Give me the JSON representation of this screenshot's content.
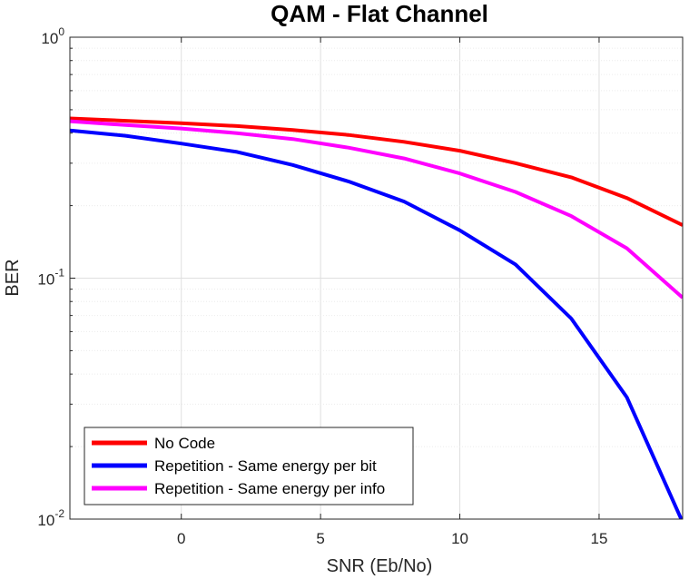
{
  "chart_data": {
    "type": "line",
    "title": "QAM - Flat Channel",
    "xlabel": "SNR (Eb/No)",
    "ylabel": "BER",
    "xlim": [
      -4,
      18
    ],
    "ylim": [
      0.01,
      1
    ],
    "yscale": "log",
    "grid": true,
    "legend_position": "bottom-left",
    "xticks": [
      0,
      5,
      10,
      15
    ],
    "xtick_labels": [
      "0",
      "5",
      "10",
      "15"
    ],
    "yticks": [
      {
        "value": 1,
        "base": "10",
        "exp": "0"
      },
      {
        "value": 0.1,
        "base": "10",
        "exp": "-1"
      },
      {
        "value": 0.01,
        "base": "10",
        "exp": "-2"
      }
    ],
    "x": [
      -4,
      -2,
      0,
      2,
      4,
      6,
      8,
      10,
      12,
      14,
      16,
      18
    ],
    "series": [
      {
        "name": "No Code",
        "color": "#ff0000",
        "values": [
          0.46,
          0.45,
          0.44,
          0.428,
          0.412,
          0.393,
          0.368,
          0.338,
          0.3,
          0.262,
          0.215,
          0.166
        ]
      },
      {
        "name": "Repetition - Same energy per bit",
        "color": "#0000ff",
        "values": [
          0.41,
          0.39,
          0.362,
          0.334,
          0.295,
          0.252,
          0.208,
          0.158,
          0.114,
          0.068,
          0.032,
          0.0097
        ]
      },
      {
        "name": "Repetition - Same energy per info",
        "color": "#ff00ff",
        "values": [
          0.448,
          0.432,
          0.418,
          0.4,
          0.378,
          0.348,
          0.314,
          0.272,
          0.228,
          0.181,
          0.133,
          0.083
        ]
      }
    ]
  }
}
